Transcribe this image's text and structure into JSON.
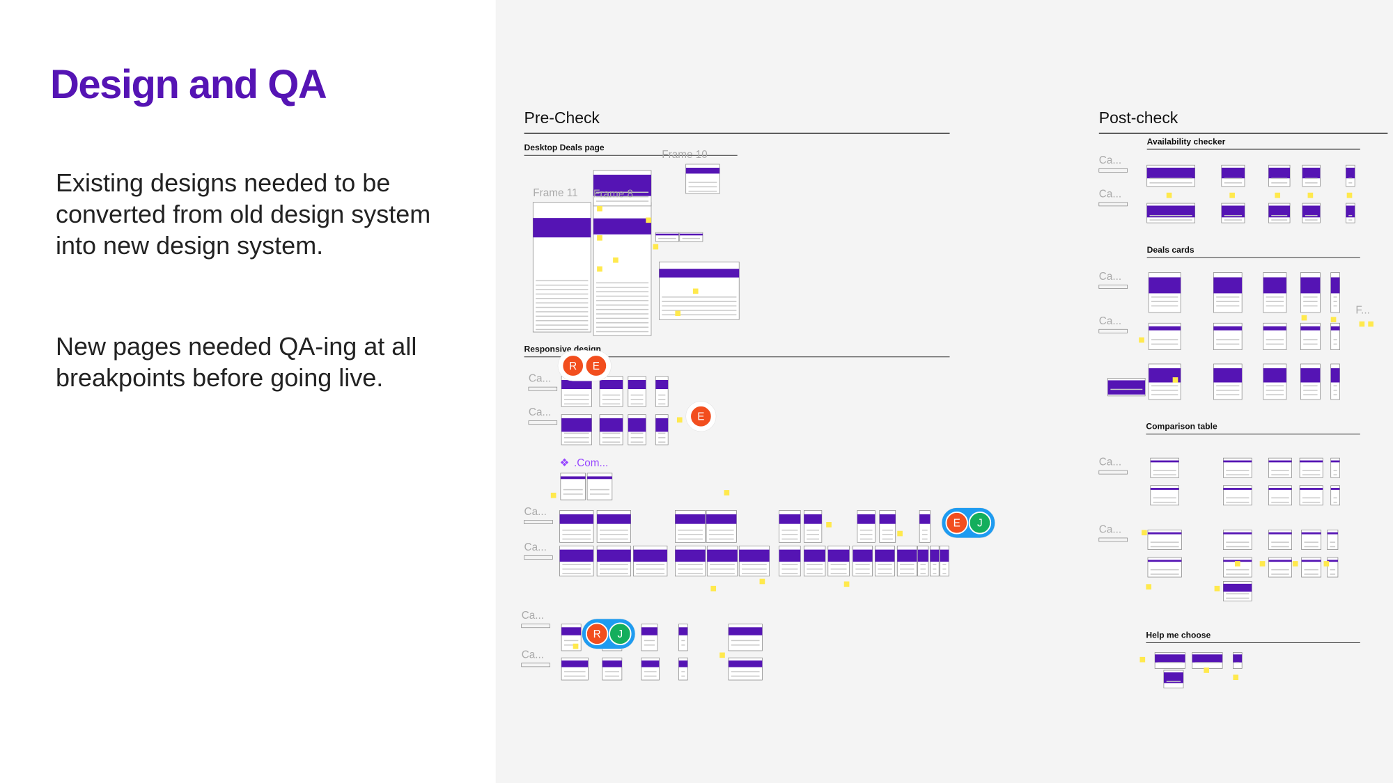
{
  "slide": {
    "title": "Design and QA",
    "paragraphs": [
      "Existing designs needed to be converted from old design system into new design system.",
      "New pages needed QA-ing at all breakpoints before going live."
    ]
  },
  "board": {
    "sections": [
      {
        "title": "Pre-Check",
        "groups": [
          "Desktop Deals page",
          "Responsive design"
        ]
      },
      {
        "title": "Post-check",
        "groups": [
          "Availability checker",
          "Deals cards",
          "Comparison table",
          "Help me choose"
        ]
      }
    ],
    "frames": [
      "Frame 11",
      "Frame 8",
      "Frame 10"
    ],
    "card_labels": [
      "Ca...",
      "Ca...",
      "Ca...",
      "Ca...",
      "Ca...",
      "Ca...",
      "Ca...",
      "Ca...",
      "Ca...",
      "Ca...",
      "Ca...",
      "Ca..."
    ],
    "component_label": ".Com...",
    "truncated_label": "F...",
    "avatars": [
      [
        "R",
        "E"
      ],
      [
        "E"
      ],
      [
        "E",
        "J"
      ],
      [
        "R",
        "J"
      ]
    ]
  }
}
